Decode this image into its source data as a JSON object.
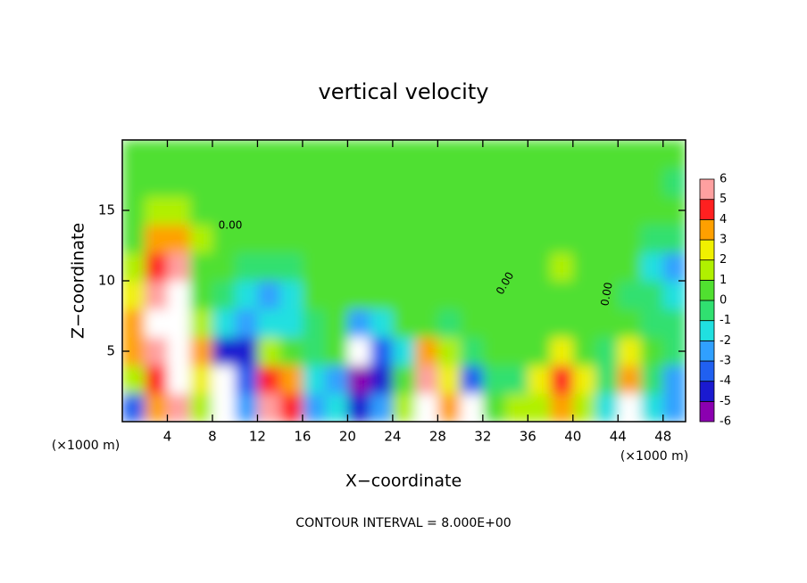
{
  "chart_data": {
    "type": "heatmap",
    "title": "vertical velocity",
    "x_label": "X−coordinate",
    "y_label": "Z−coordinate",
    "x_unit_label": "(×1000 m)",
    "y_unit_label": "(×1000 m)",
    "footer": "CONTOUR INTERVAL = 8.000E+00",
    "contour_label": "0.00",
    "xlim": [
      0,
      50
    ],
    "ylim": [
      0,
      20
    ],
    "xticks": [
      4,
      8,
      12,
      16,
      20,
      24,
      28,
      32,
      36,
      40,
      44,
      48
    ],
    "yticks": [
      5,
      10,
      15
    ],
    "x": [
      1,
      3,
      5,
      7,
      9,
      11,
      13,
      15,
      17,
      19,
      21,
      23,
      25,
      27,
      29,
      31,
      33,
      35,
      37,
      39,
      41,
      43,
      45,
      47,
      49
    ],
    "y": [
      1,
      3,
      5,
      7,
      9,
      11,
      13,
      15,
      17,
      19
    ],
    "z": [
      [
        -4,
        3,
        5,
        1,
        -7,
        -3,
        5,
        4,
        -3,
        -2,
        -5,
        -3,
        1,
        8,
        3,
        -7,
        0,
        1,
        1,
        3,
        1,
        -2,
        8,
        -2,
        -3
      ],
      [
        1,
        4,
        7,
        2,
        -7,
        -4,
        4,
        3,
        -2,
        -3,
        -6,
        -5,
        0,
        5,
        2,
        -4,
        -1,
        -1,
        2,
        4,
        2,
        -1,
        3,
        -1,
        -3
      ],
      [
        3,
        5,
        8,
        3,
        -5,
        -5,
        1,
        0,
        -1,
        0,
        -7,
        -4,
        -2,
        3,
        1,
        -1,
        0.5,
        0,
        0.5,
        2,
        0.5,
        -0.5,
        2,
        0,
        -1
      ],
      [
        3,
        6,
        8,
        1,
        -2,
        -3,
        -2,
        -2,
        -1,
        0.5,
        -3,
        -2,
        0,
        0.5,
        -1,
        0,
        0.5,
        0.5,
        0.5,
        0.5,
        0,
        0,
        0,
        -1,
        -1
      ],
      [
        2,
        5,
        7,
        0.5,
        -1,
        -2,
        -3,
        -2,
        0,
        0.5,
        0,
        0,
        0.5,
        0.5,
        0,
        0.5,
        0.5,
        0.5,
        0.5,
        0.5,
        0.5,
        0.5,
        -0.5,
        -1,
        -2
      ],
      [
        1,
        4,
        5,
        0.5,
        0,
        -1,
        -1,
        -1,
        0,
        0.5,
        0.5,
        0.5,
        0.5,
        0.5,
        0.5,
        0.5,
        0.5,
        0.5,
        0.5,
        1,
        0.5,
        0.5,
        0,
        -2,
        -3
      ],
      [
        0.5,
        3,
        3,
        1,
        0.5,
        0,
        0.5,
        0.5,
        0.5,
        0.5,
        0.5,
        0.5,
        0.5,
        0.5,
        0.5,
        0.5,
        0.5,
        0.3,
        0.5,
        0.5,
        0.5,
        0.3,
        0.3,
        -1,
        -1
      ],
      [
        0.5,
        1,
        1.5,
        0.5,
        0.5,
        0.5,
        0.3,
        0.5,
        0.5,
        0.5,
        0.5,
        0.5,
        0.5,
        0.5,
        0.5,
        0.5,
        0.5,
        0.3,
        0.3,
        0.3,
        0.3,
        0.3,
        0.3,
        0,
        0
      ],
      [
        0.3,
        0.5,
        0.5,
        0.3,
        0.3,
        0.3,
        0.3,
        0.3,
        0.3,
        0.5,
        0.5,
        0.5,
        0.5,
        0.5,
        0.5,
        0.5,
        0.5,
        0.3,
        0.3,
        0.3,
        0.3,
        0.3,
        0.3,
        0.3,
        -0.5
      ],
      [
        0.3,
        0.3,
        0.3,
        0.3,
        0.3,
        0.3,
        0.3,
        0.3,
        0.3,
        0.3,
        0.3,
        0.3,
        0.3,
        0.3,
        0.3,
        0.3,
        0.3,
        0.3,
        0.3,
        0.3,
        0.3,
        0.3,
        0.3,
        0.3,
        0
      ]
    ],
    "colorbar": {
      "levels": [
        -6,
        -5,
        -4,
        -3,
        -2,
        -1,
        0,
        1,
        2,
        3,
        4,
        5,
        6
      ],
      "colors": [
        "#8b00b0",
        "#1a1ad0",
        "#2060f0",
        "#30a0ff",
        "#20e0e0",
        "#30e070",
        "#50e030",
        "#b0f000",
        "#f0f000",
        "#ffa000",
        "#ff2020",
        "#ffa0a0"
      ],
      "out_of_range_color": "#ffffff"
    }
  }
}
